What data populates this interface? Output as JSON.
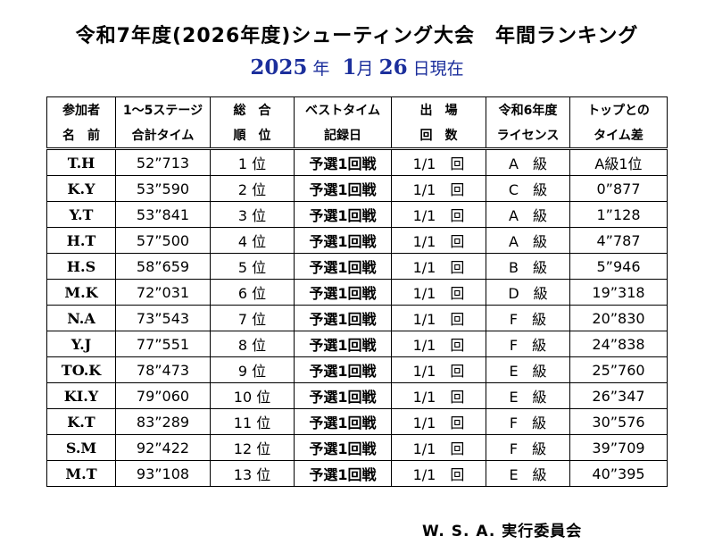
{
  "title": "令和7年度(2026年度)シューティング大会　年間ランキング",
  "subtitle": {
    "year": "2025",
    "year_unit": "年",
    "month": "1",
    "month_unit": "月",
    "day": "26",
    "suffix": "日現在"
  },
  "table": {
    "headers": [
      [
        "参加者",
        "名　前"
      ],
      [
        "1～5ステージ",
        "合計タイム"
      ],
      [
        "総　合",
        "順　位"
      ],
      [
        "ベストタイム",
        "記録日"
      ],
      [
        "出　場",
        "回　数"
      ],
      [
        "令和6年度",
        "ライセンス"
      ],
      [
        "トップとの",
        "タイム差"
      ]
    ],
    "rows": [
      [
        "T.H",
        "52”713",
        "1 位",
        "予選1回戦",
        "1/1　回",
        "A　級",
        "A級1位"
      ],
      [
        "K.Y",
        "53”590",
        "2 位",
        "予選1回戦",
        "1/1　回",
        "C　級",
        "0”877"
      ],
      [
        "Y.T",
        "53”841",
        "3 位",
        "予選1回戦",
        "1/1　回",
        "A　級",
        "1”128"
      ],
      [
        "H.T",
        "57”500",
        "4 位",
        "予選1回戦",
        "1/1　回",
        "A　級",
        "4”787"
      ],
      [
        "H.S",
        "58”659",
        "5 位",
        "予選1回戦",
        "1/1　回",
        "B　級",
        "5”946"
      ],
      [
        "M.K",
        "72”031",
        "6 位",
        "予選1回戦",
        "1/1　回",
        "D　級",
        "19”318"
      ],
      [
        "N.A",
        "73”543",
        "7 位",
        "予選1回戦",
        "1/1　回",
        "F　級",
        "20”830"
      ],
      [
        "Y.J",
        "77”551",
        "8 位",
        "予選1回戦",
        "1/1　回",
        "F　級",
        "24”838"
      ],
      [
        "TO.K",
        "78”473",
        "9 位",
        "予選1回戦",
        "1/1　回",
        "E　級",
        "25”760"
      ],
      [
        "KI.Y",
        "79”060",
        "10 位",
        "予選1回戦",
        "1/1　回",
        "E　級",
        "26”347"
      ],
      [
        "K.T",
        "83”289",
        "11 位",
        "予選1回戦",
        "1/1　回",
        "F　級",
        "30”576"
      ],
      [
        "S.M",
        "92”422",
        "12 位",
        "予選1回戦",
        "1/1　回",
        "F　級",
        "39”709"
      ],
      [
        "M.T",
        "93”108",
        "13 位",
        "予選1回戦",
        "1/1　回",
        "E　級",
        "40”395"
      ]
    ]
  },
  "footer": "W. S. A. 実行委員会",
  "colors": {
    "subtitle": "#1c2f9c",
    "text": "#000000"
  }
}
